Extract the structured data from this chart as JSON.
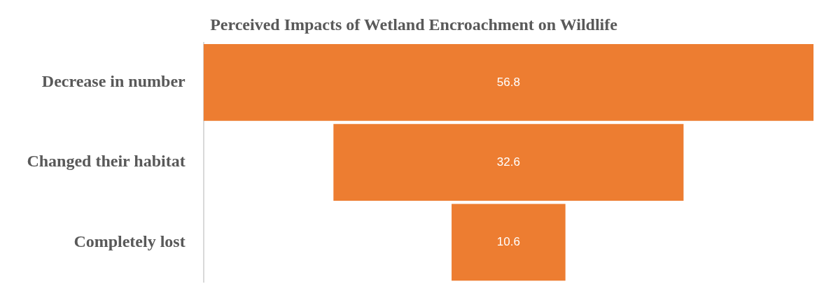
{
  "chart_data": {
    "type": "other",
    "title": "Perceived Impacts of Wetland Encroachment on Wildlife",
    "categories": [
      "Decrease in number",
      "Changed their habitat",
      "Completely lost"
    ],
    "values": [
      56.8,
      32.6,
      10.6
    ],
    "color": "#ed7d31",
    "data_labels": true
  }
}
